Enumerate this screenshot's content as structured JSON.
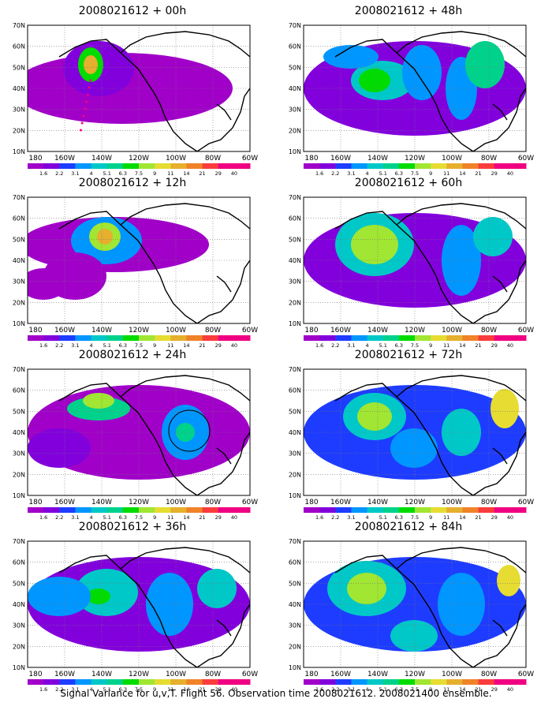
{
  "figure": {
    "caption": "Signal Variance for u,v,T. Flight 56. Observation time 2008021612. 2008021400 ensemble.",
    "lat_labels": [
      "10N",
      "20N",
      "30N",
      "40N",
      "50N",
      "60N",
      "70N"
    ],
    "lon_labels": [
      "180",
      "160W",
      "140W",
      "120W",
      "100W",
      "80W",
      "60W"
    ],
    "colorbar": {
      "labels": [
        "1.6",
        "2.2",
        "3.1",
        "4",
        "5.1",
        "6.3",
        "7.5",
        "9",
        "11",
        "14",
        "21",
        "29",
        "40"
      ],
      "colors": [
        "#a000c8",
        "#8200dc",
        "#1e3cff",
        "#0096ff",
        "#00c8c8",
        "#00d28c",
        "#00dc00",
        "#a0e632",
        "#e6dc32",
        "#e6af2d",
        "#f08228",
        "#fa3c3c",
        "#f00082"
      ]
    },
    "panels": [
      {
        "title": "2008021612 + 00h"
      },
      {
        "title": "2008021612 + 48h"
      },
      {
        "title": "2008021612 + 12h"
      },
      {
        "title": "2008021612 + 60h"
      },
      {
        "title": "2008021612 + 24h"
      },
      {
        "title": "2008021612 + 72h"
      },
      {
        "title": "2008021612 + 36h"
      },
      {
        "title": "2008021612 + 84h"
      }
    ]
  }
}
